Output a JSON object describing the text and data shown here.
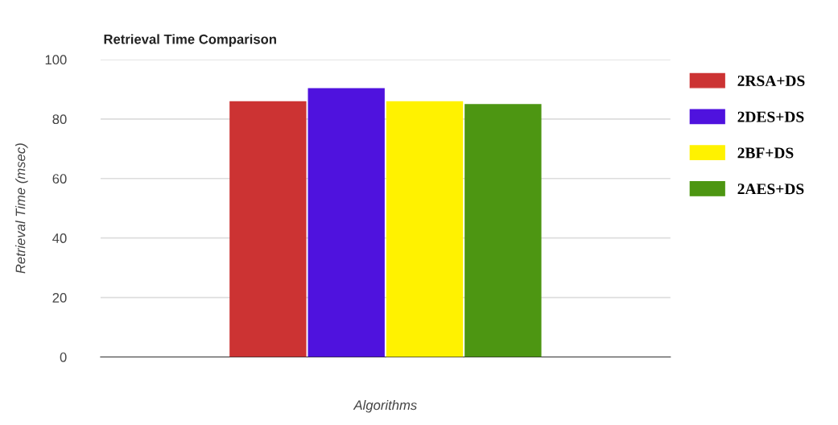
{
  "chart_data": {
    "type": "bar",
    "title": "Retrieval Time Comparison",
    "xlabel": "Algorithms",
    "ylabel": "Retrieval Time (msec)",
    "categories": [
      null
    ],
    "series": [
      {
        "name": "2RSA+DS",
        "color": "#cc3333",
        "values": [
          86
        ]
      },
      {
        "name": "2DES+DS",
        "color": "#4f12de",
        "values": [
          90.4
        ]
      },
      {
        "name": "2BF+DS",
        "color": "#fff200",
        "values": [
          86
        ]
      },
      {
        "name": "2AES+DS",
        "color": "#4d9612",
        "values": [
          85
        ]
      }
    ],
    "ylim": [
      0,
      100
    ],
    "yticks": [
      0,
      20,
      40,
      60,
      80,
      100
    ],
    "grid": "y",
    "legend": "right"
  }
}
